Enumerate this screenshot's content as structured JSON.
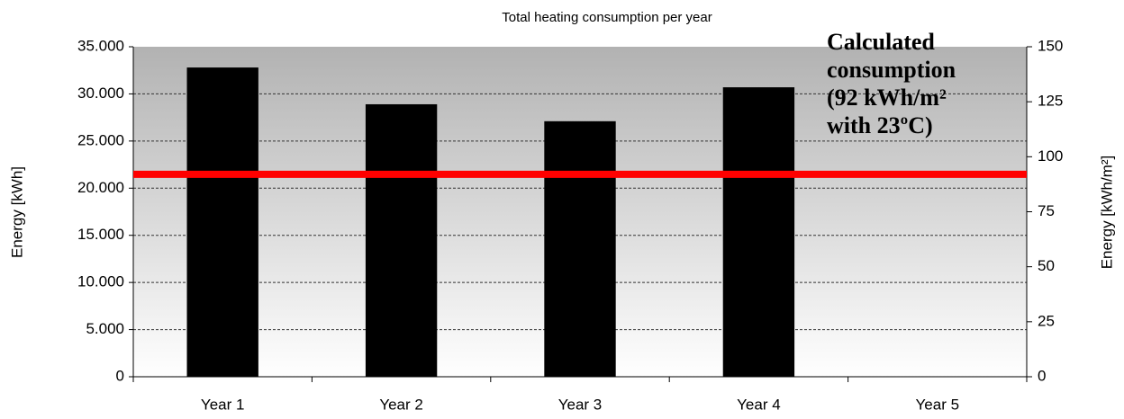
{
  "chart_data": {
    "type": "bar",
    "title": "Total heating consumption per year",
    "ylabel": "Energy [kWh]",
    "y2label": "Energy [kWh/m²]",
    "categories": [
      "Year 1",
      "Year 2",
      "Year 3",
      "Year 4",
      "Year 5"
    ],
    "values": [
      32800,
      28900,
      27100,
      30700,
      null
    ],
    "color": "#000000",
    "ylim": [
      0,
      35000
    ],
    "yticks": [
      0,
      {
        "value": 5000,
        "label": "5.000"
      },
      {
        "value": 10000,
        "label": "10.000"
      },
      {
        "value": 15000,
        "label": "15.000"
      },
      {
        "value": 20000,
        "label": "20.000"
      },
      {
        "value": 25000,
        "label": "25.000"
      },
      {
        "value": 30000,
        "label": "30.000"
      },
      {
        "value": 35000,
        "label": "35.000"
      }
    ],
    "y2lim": [
      0,
      150
    ],
    "y2ticks": [
      0,
      25,
      50,
      75,
      100,
      125,
      150
    ],
    "grid": true,
    "reference_line": {
      "value": 92,
      "axis": "y2",
      "color": "#ff0000"
    },
    "annotation": [
      "Calculated",
      "consumption",
      "(92 kWh/m²",
      "with 23ºC)"
    ]
  }
}
